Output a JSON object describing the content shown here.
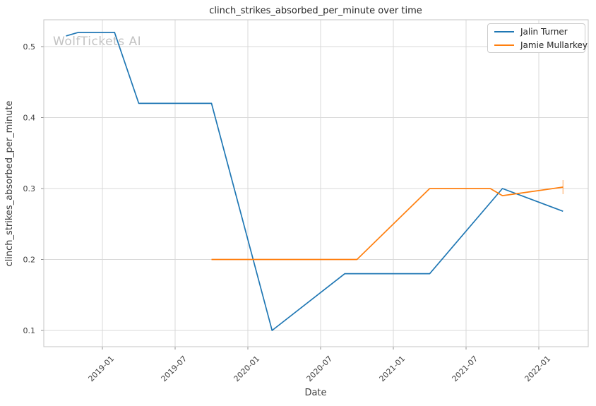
{
  "watermark": {
    "text": "WolfTickets AI"
  },
  "chart_data": {
    "type": "line",
    "title": "clinch_strikes_absorbed_per_minute over time",
    "xlabel": "Date",
    "ylabel": "clinch_strikes_absorbed_per_minute",
    "grid": true,
    "legend_position": "upper right",
    "x_tick_labels": [
      "2019-01",
      "2019-07",
      "2020-01",
      "2020-07",
      "2021-01",
      "2021-07",
      "2022-01"
    ],
    "y_tick_labels": [
      "0.5",
      "0.4",
      "0.3",
      "0.2",
      "0.1"
    ],
    "xlim_dates": [
      "2018-08",
      "2022-05"
    ],
    "ylim": [
      0.077,
      0.538
    ],
    "series": [
      {
        "name": "Jalin Turner",
        "color": "#1f77b4",
        "points": [
          [
            "2018-10",
            0.515
          ],
          [
            "2018-11",
            0.52
          ],
          [
            "2019-02",
            0.52
          ],
          [
            "2019-04",
            0.42
          ],
          [
            "2019-10",
            0.42
          ],
          [
            "2020-03",
            0.1
          ],
          [
            "2020-09",
            0.18
          ],
          [
            "2021-04",
            0.18
          ],
          [
            "2021-10",
            0.3
          ],
          [
            "2022-03",
            0.268
          ]
        ]
      },
      {
        "name": "Jamie Mullarkey",
        "color": "#ff7f0e",
        "end_tick": true,
        "points": [
          [
            "2019-10",
            0.2
          ],
          [
            "2020-10",
            0.2
          ],
          [
            "2021-04",
            0.3
          ],
          [
            "2021-09",
            0.3
          ],
          [
            "2021-10",
            0.29
          ],
          [
            "2022-03",
            0.302
          ]
        ]
      }
    ]
  }
}
